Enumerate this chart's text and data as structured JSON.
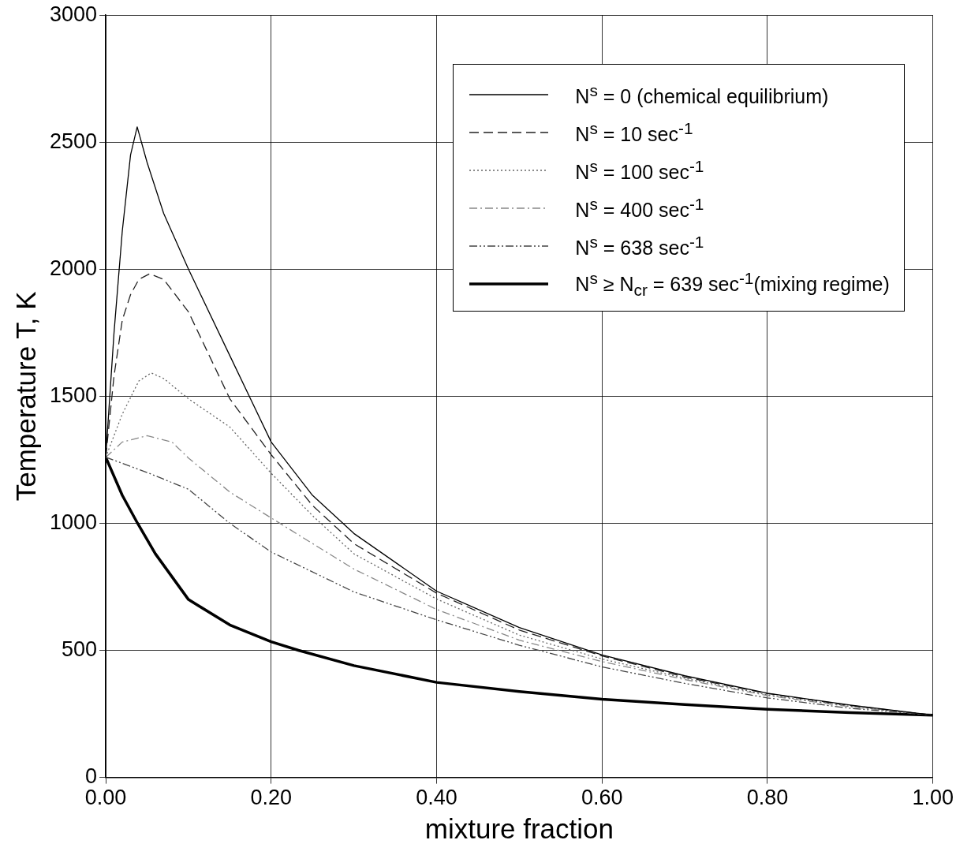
{
  "chart_data": {
    "type": "line",
    "xlabel": "mixture fraction",
    "ylabel": "Temperature T, K",
    "xlim": [
      0,
      1
    ],
    "xticks": [
      {
        "value": 0,
        "label": "0.00"
      },
      {
        "value": 0.2,
        "label": "0.20"
      },
      {
        "value": 0.4,
        "label": "0.40"
      },
      {
        "value": 0.6,
        "label": "0.60"
      },
      {
        "value": 0.8,
        "label": "0.80"
      },
      {
        "value": 1,
        "label": "1.00"
      }
    ],
    "ylim": [
      0,
      3000
    ],
    "yticks": [
      0,
      500,
      1000,
      1500,
      2000,
      2500,
      3000
    ],
    "grid": true,
    "legend": "top right",
    "marker": "none",
    "series": [
      {
        "name": "N$^{s}$ = 0 (chemical equilibrium)",
        "color": "#000000",
        "line_style": "solid",
        "x": [
          0,
          0.01,
          0.02,
          0.03,
          0.038,
          0.05,
          0.07,
          0.1,
          0.15,
          0.2,
          0.25,
          0.3,
          0.4,
          0.5,
          0.6,
          0.7,
          0.8,
          0.9,
          1
        ],
        "values": [
          1260,
          1750,
          2150,
          2450,
          2560,
          2420,
          2220,
          2000,
          1660,
          1320,
          1110,
          960,
          733,
          590,
          482,
          400,
          331,
          285,
          245
        ]
      },
      {
        "name": "N$^{s}$ = 10 sec$^{-1}$",
        "color": "#222222",
        "line_style": "dashed",
        "x": [
          0,
          0.01,
          0.02,
          0.03,
          0.04,
          0.053,
          0.07,
          0.1,
          0.15,
          0.2,
          0.25,
          0.3,
          0.4,
          0.5,
          0.6,
          0.7,
          0.8,
          0.9,
          1
        ],
        "values": [
          1260,
          1580,
          1800,
          1900,
          1960,
          1982,
          1960,
          1832,
          1490,
          1270,
          1070,
          920,
          725,
          580,
          478,
          395,
          330,
          283,
          245
        ]
      },
      {
        "name": "N$^{s}$ = 100 sec$^{-1}$",
        "color": "#666666",
        "line_style": "dotted",
        "x": [
          0,
          0.02,
          0.04,
          0.055,
          0.07,
          0.1,
          0.15,
          0.2,
          0.25,
          0.3,
          0.4,
          0.5,
          0.6,
          0.7,
          0.8,
          0.9,
          1
        ],
        "values": [
          1260,
          1430,
          1560,
          1592,
          1570,
          1490,
          1379,
          1197,
          1030,
          880,
          702,
          560,
          466,
          390,
          325,
          280,
          245
        ]
      },
      {
        "name": "N$^{s}$ = 400 sec$^{-1}$",
        "color": "#888888",
        "line_style": "dashdot",
        "x": [
          0,
          0.02,
          0.05,
          0.08,
          0.1,
          0.15,
          0.2,
          0.3,
          0.4,
          0.5,
          0.6,
          0.7,
          0.8,
          0.9,
          1
        ],
        "values": [
          1260,
          1320,
          1345,
          1320,
          1257,
          1123,
          1021,
          820,
          661,
          540,
          456,
          385,
          322,
          278,
          245
        ]
      },
      {
        "name": "N$^{s}$ = 638 sec$^{-1}$",
        "color": "#444444",
        "line_style": "dashdotdot",
        "x": [
          0,
          0.05,
          0.1,
          0.15,
          0.2,
          0.3,
          0.4,
          0.5,
          0.6,
          0.7,
          0.8,
          0.9,
          1
        ],
        "values": [
          1260,
          1200,
          1134,
          1000,
          887,
          730,
          620,
          520,
          435,
          370,
          313,
          272,
          245
        ]
      },
      {
        "name": "N$^{s}$ ≥ N$_{cr}$ = 639 sec$^{-1}$(mixing regime)",
        "color": "#000000",
        "line_style": "solid",
        "x": [
          0,
          0.02,
          0.0385,
          0.06,
          0.1,
          0.15,
          0.2,
          0.233,
          0.3,
          0.4,
          0.5,
          0.6,
          0.7,
          0.8,
          0.9,
          1
        ],
        "values": [
          1260,
          1110,
          1000,
          880,
          700,
          600,
          534,
          500,
          440,
          374,
          338,
          308,
          287,
          268,
          255,
          245
        ]
      }
    ]
  }
}
